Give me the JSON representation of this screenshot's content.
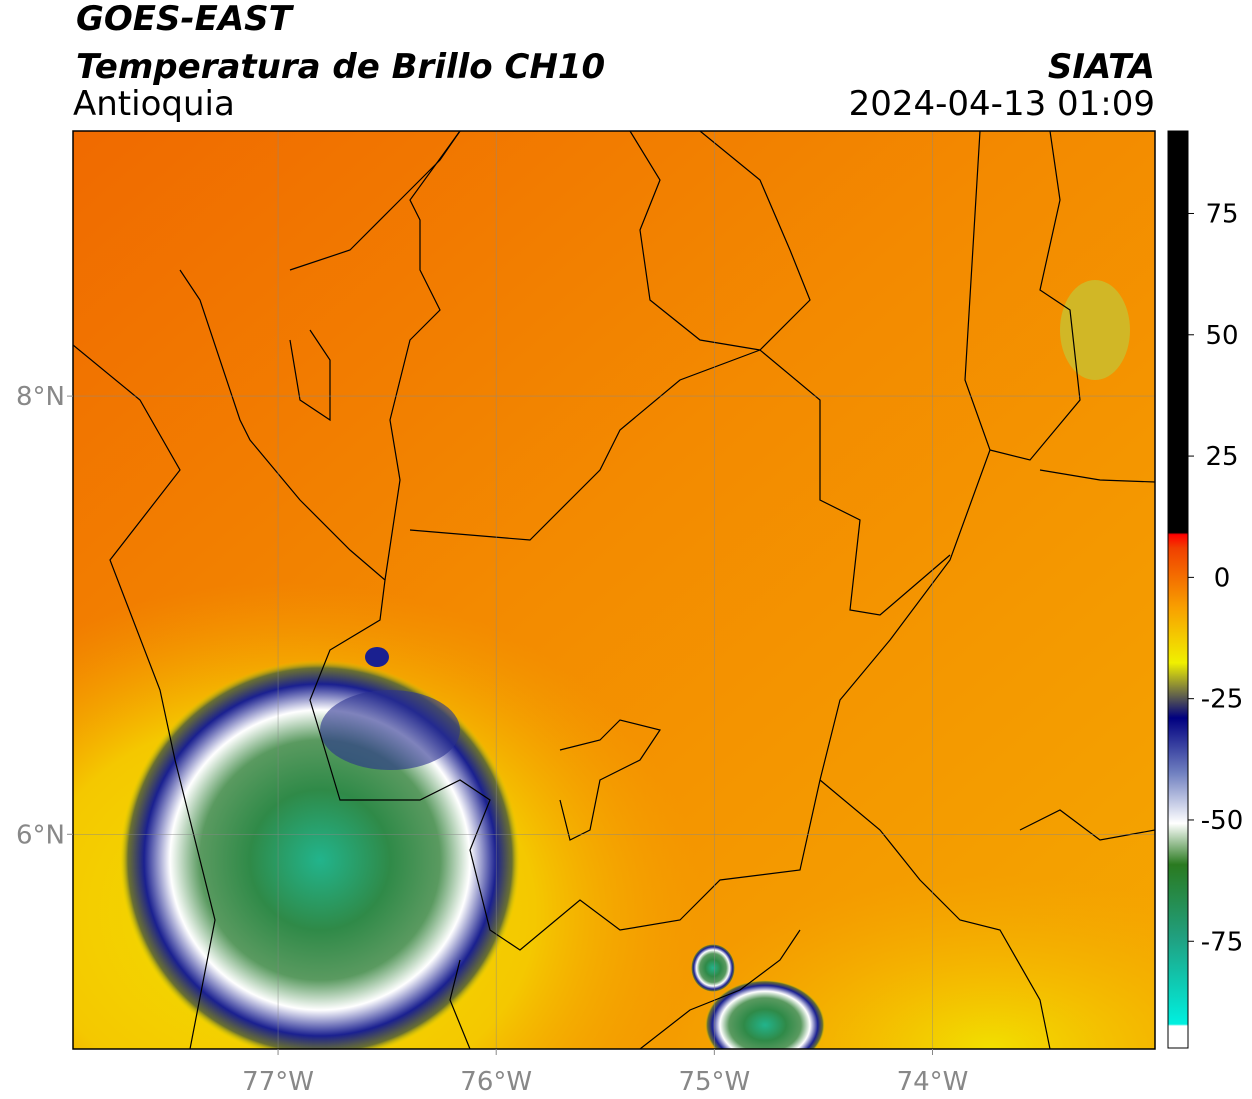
{
  "header": {
    "title": "GOES-EAST",
    "subtitle": "Temperatura de Brillo CH10",
    "region": "Antioquia",
    "source": "SIATA",
    "datetime": "2024-04-13 01:09"
  },
  "map": {
    "xlim": [
      -77.94,
      -72.98
    ],
    "ylim": [
      5.02,
      9.21
    ],
    "xticks": [
      {
        "value": -77,
        "label": "77°W"
      },
      {
        "value": -76,
        "label": "76°W"
      },
      {
        "value": -75,
        "label": "75°W"
      },
      {
        "value": -74,
        "label": "74°W"
      }
    ],
    "yticks": [
      {
        "value": 6,
        "label": "6°N"
      },
      {
        "value": 8,
        "label": "8°N"
      }
    ],
    "grid": true
  },
  "colorbar": {
    "lim": [
      -97,
      92
    ],
    "ticks": [
      -75,
      -50,
      -25,
      0,
      25,
      50,
      75
    ]
  }
}
